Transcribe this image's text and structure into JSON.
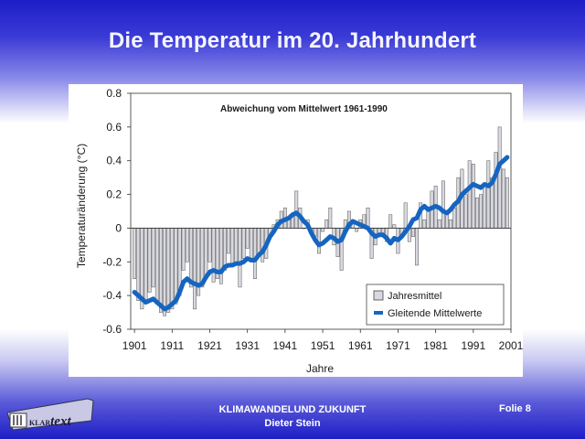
{
  "slide": {
    "title": "Die Temperatur im 20. Jahrhundert",
    "footer_line1": "KLIMAWANDELUND ZUKUNFT",
    "footer_line2": "Dieter Stein",
    "page_label": "Folie 8",
    "logo_small": "KLAR",
    "logo_large": "text"
  },
  "colors": {
    "background_blue": "#1e1ec8",
    "bar_fill": "#d8d8e0",
    "bar_stroke": "#555555",
    "line": "#1565c0"
  },
  "chart_data": {
    "type": "bar",
    "subtitle": "Abweichung vom Mittelwert 1961-1990",
    "xlabel": "Jahre",
    "ylabel": "Temperaturänderung (°C)",
    "ylim": [
      -0.6,
      0.8
    ],
    "yticks": [
      "0.8",
      "0.6",
      "0.4",
      "0.2",
      "0",
      "-0.2",
      "-0.4",
      "-0.6"
    ],
    "ytick_values": [
      0.8,
      0.6,
      0.4,
      0.2,
      0,
      -0.2,
      -0.4,
      -0.6
    ],
    "xlim": [
      1900,
      2001
    ],
    "xticks": [
      "1901",
      "1911",
      "1921",
      "1931",
      "1941",
      "1951",
      "1961",
      "1971",
      "1981",
      "1991",
      "2001"
    ],
    "xtick_values": [
      1901,
      1911,
      1921,
      1931,
      1941,
      1951,
      1961,
      1971,
      1981,
      1991,
      2001
    ],
    "grid": false,
    "legend_position": "bottom-right",
    "legend": [
      "Jahresmittel",
      "Gleitende  Mittelwerte"
    ],
    "series": [
      {
        "name": "Jahresmittel",
        "kind": "bar",
        "x": [
          1901,
          1902,
          1903,
          1904,
          1905,
          1906,
          1907,
          1908,
          1909,
          1910,
          1911,
          1912,
          1913,
          1914,
          1915,
          1916,
          1917,
          1918,
          1919,
          1920,
          1921,
          1922,
          1923,
          1924,
          1925,
          1926,
          1927,
          1928,
          1929,
          1930,
          1931,
          1932,
          1933,
          1934,
          1935,
          1936,
          1937,
          1938,
          1939,
          1940,
          1941,
          1942,
          1943,
          1944,
          1945,
          1946,
          1947,
          1948,
          1949,
          1950,
          1951,
          1952,
          1953,
          1954,
          1955,
          1956,
          1957,
          1958,
          1959,
          1960,
          1961,
          1962,
          1963,
          1964,
          1965,
          1966,
          1967,
          1968,
          1969,
          1970,
          1971,
          1972,
          1973,
          1974,
          1975,
          1976,
          1977,
          1978,
          1979,
          1980,
          1981,
          1982,
          1983,
          1984,
          1985,
          1986,
          1987,
          1988,
          1989,
          1990,
          1991,
          1992,
          1993,
          1994,
          1995,
          1996,
          1997,
          1998,
          1999,
          2000
        ],
        "values": [
          -0.3,
          -0.43,
          -0.48,
          -0.45,
          -0.38,
          -0.35,
          -0.45,
          -0.5,
          -0.52,
          -0.5,
          -0.48,
          -0.45,
          -0.4,
          -0.25,
          -0.2,
          -0.35,
          -0.48,
          -0.4,
          -0.35,
          -0.3,
          -0.2,
          -0.32,
          -0.3,
          -0.33,
          -0.25,
          -0.15,
          -0.22,
          -0.22,
          -0.35,
          -0.18,
          -0.12,
          -0.2,
          -0.3,
          -0.15,
          -0.2,
          -0.18,
          -0.05,
          0.02,
          0.05,
          0.1,
          0.12,
          0.05,
          0.08,
          0.22,
          0.12,
          0.0,
          0.05,
          -0.03,
          -0.05,
          -0.15,
          -0.02,
          0.05,
          0.12,
          -0.1,
          -0.17,
          -0.25,
          0.05,
          0.1,
          0.05,
          -0.02,
          0.05,
          0.08,
          0.12,
          -0.18,
          -0.1,
          -0.05,
          -0.05,
          -0.08,
          0.08,
          0.02,
          -0.15,
          -0.05,
          0.15,
          -0.08,
          -0.05,
          -0.22,
          0.15,
          0.05,
          0.12,
          0.22,
          0.25,
          0.05,
          0.28,
          0.08,
          0.05,
          0.12,
          0.3,
          0.35,
          0.2,
          0.4,
          0.38,
          0.18,
          0.2,
          0.25,
          0.4,
          0.3,
          0.45,
          0.6,
          0.35,
          0.3
        ]
      },
      {
        "name": "Gleitende  Mittelwerte",
        "kind": "line",
        "x": [
          1901,
          1902,
          1903,
          1904,
          1905,
          1906,
          1907,
          1908,
          1909,
          1910,
          1911,
          1912,
          1913,
          1914,
          1915,
          1916,
          1917,
          1918,
          1919,
          1920,
          1921,
          1922,
          1923,
          1924,
          1925,
          1926,
          1927,
          1928,
          1929,
          1930,
          1931,
          1932,
          1933,
          1934,
          1935,
          1936,
          1937,
          1938,
          1939,
          1940,
          1941,
          1942,
          1943,
          1944,
          1945,
          1946,
          1947,
          1948,
          1949,
          1950,
          1951,
          1952,
          1953,
          1954,
          1955,
          1956,
          1957,
          1958,
          1959,
          1960,
          1961,
          1962,
          1963,
          1964,
          1965,
          1966,
          1967,
          1968,
          1969,
          1970,
          1971,
          1972,
          1973,
          1974,
          1975,
          1976,
          1977,
          1978,
          1979,
          1980,
          1981,
          1982,
          1983,
          1984,
          1985,
          1986,
          1987,
          1988,
          1989,
          1990,
          1991,
          1992,
          1993,
          1994,
          1995,
          1996,
          1997,
          1998,
          1999,
          2000
        ],
        "values": [
          -0.38,
          -0.4,
          -0.42,
          -0.44,
          -0.43,
          -0.42,
          -0.44,
          -0.46,
          -0.48,
          -0.47,
          -0.45,
          -0.43,
          -0.38,
          -0.32,
          -0.3,
          -0.32,
          -0.33,
          -0.34,
          -0.33,
          -0.29,
          -0.26,
          -0.25,
          -0.26,
          -0.26,
          -0.23,
          -0.22,
          -0.22,
          -0.21,
          -0.21,
          -0.2,
          -0.18,
          -0.19,
          -0.19,
          -0.16,
          -0.14,
          -0.1,
          -0.05,
          -0.02,
          0.02,
          0.04,
          0.05,
          0.06,
          0.08,
          0.09,
          0.07,
          0.04,
          0.02,
          -0.03,
          -0.07,
          -0.1,
          -0.09,
          -0.07,
          -0.05,
          -0.06,
          -0.08,
          -0.07,
          -0.02,
          0.02,
          0.04,
          0.03,
          0.02,
          0.01,
          0.0,
          -0.03,
          -0.05,
          -0.04,
          -0.04,
          -0.06,
          -0.09,
          -0.06,
          -0.07,
          -0.05,
          -0.02,
          0.01,
          0.05,
          0.06,
          0.11,
          0.13,
          0.11,
          0.12,
          0.13,
          0.12,
          0.1,
          0.09,
          0.11,
          0.14,
          0.16,
          0.2,
          0.22,
          0.24,
          0.26,
          0.25,
          0.24,
          0.26,
          0.25,
          0.27,
          0.32,
          0.38,
          0.4,
          0.42
        ]
      }
    ]
  }
}
